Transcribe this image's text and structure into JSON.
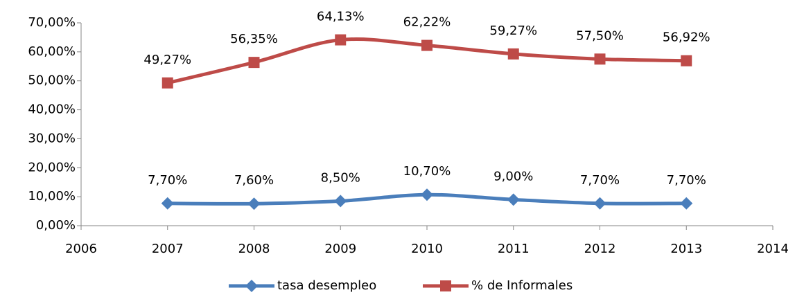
{
  "chart_data": {
    "type": "line",
    "x": [
      2007,
      2008,
      2009,
      2010,
      2011,
      2012,
      2013
    ],
    "series": [
      {
        "name": "tasa desempleo",
        "color": "#4a7ebb",
        "marker": "diamond",
        "values": [
          7.7,
          7.6,
          8.5,
          10.7,
          9.0,
          7.7,
          7.7
        ],
        "value_labels": [
          "7,70%",
          "7,60%",
          "8,50%",
          "10,70%",
          "9,00%",
          "7,70%",
          "7,70%"
        ]
      },
      {
        "name": "% de Informales",
        "color": "#be4b48",
        "marker": "square",
        "values": [
          49.27,
          56.35,
          64.13,
          62.22,
          59.27,
          57.5,
          56.92
        ],
        "value_labels": [
          "49,27%",
          "56,35%",
          "64,13%",
          "62,22%",
          "59,27%",
          "57,50%",
          "56,92%"
        ]
      }
    ],
    "xlim": [
      2006,
      2014
    ],
    "xticks": [
      2006,
      2007,
      2008,
      2009,
      2010,
      2011,
      2012,
      2013,
      2014
    ],
    "ylim": [
      0,
      70
    ],
    "yticks": [
      {
        "value": 0,
        "label": "0,00%"
      },
      {
        "value": 10,
        "label": "10,00%"
      },
      {
        "value": 20,
        "label": "20,00%"
      },
      {
        "value": 30,
        "label": "30,00%"
      },
      {
        "value": 40,
        "label": "40,00%"
      },
      {
        "value": 50,
        "label": "50,00%"
      },
      {
        "value": 60,
        "label": "60,00%"
      },
      {
        "value": 70,
        "label": "70,00%"
      }
    ],
    "legend": "bottom"
  }
}
